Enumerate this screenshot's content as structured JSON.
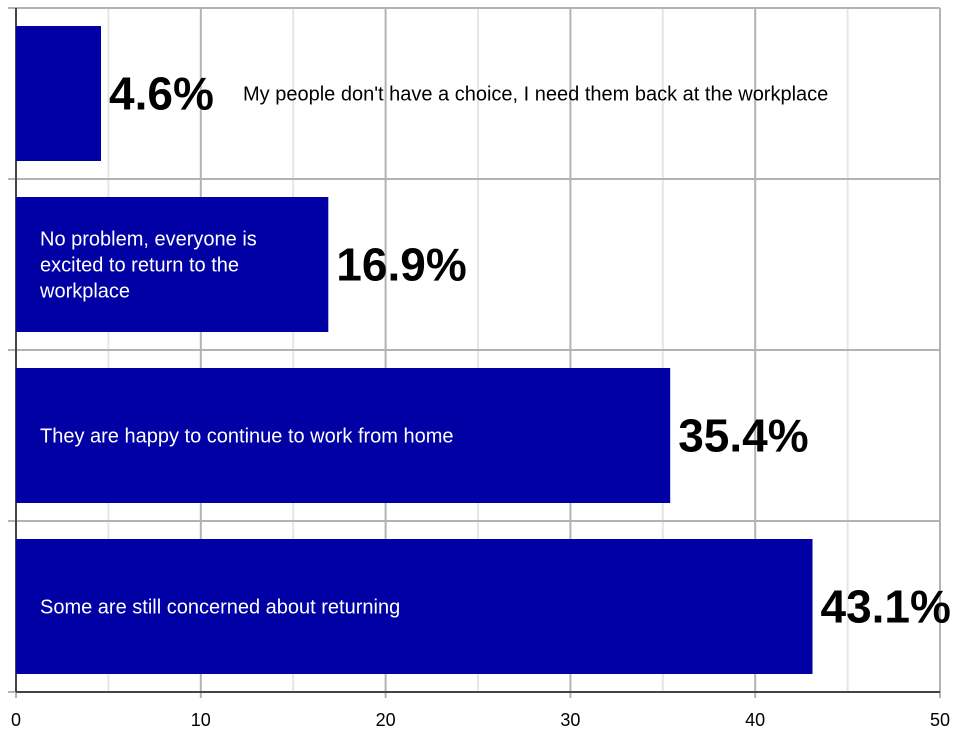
{
  "chart_data": {
    "type": "bar",
    "orientation": "horizontal",
    "categories": [
      [
        "My people don't have a choice, I need them back at the workplace"
      ],
      [
        "No problem, everyone is",
        "excited to return to the",
        "workplace"
      ],
      [
        "They are happy to continue to work from home"
      ],
      [
        "Some are still concerned about returning"
      ]
    ],
    "values": [
      4.6,
      16.9,
      35.4,
      43.1
    ],
    "value_labels": [
      "4.6%",
      "16.9%",
      "35.4%",
      "43.1%"
    ],
    "label_position": [
      "outside",
      "inside",
      "inside",
      "inside"
    ],
    "xlim": [
      0,
      50
    ],
    "xticks": [
      0,
      10,
      20,
      30,
      40,
      50
    ],
    "title": "",
    "xlabel": "",
    "ylabel": "",
    "grid": true,
    "colors": {
      "bar": "#0000a5",
      "grid_major": "#b3b3b3",
      "grid_minor": "#e6e6e6",
      "axis": "#444444"
    }
  }
}
